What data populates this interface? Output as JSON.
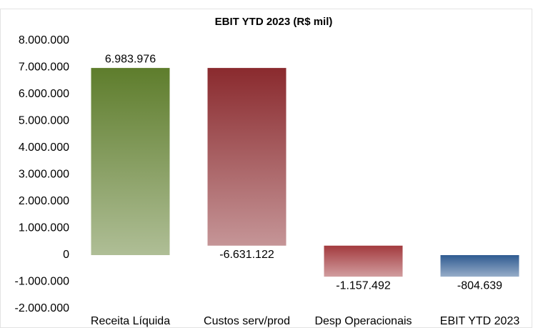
{
  "chart_data": {
    "type": "waterfall",
    "title": "EBIT YTD 2023 (R$ mil)",
    "categories": [
      "Receita Líquida",
      "Custos serv/prod",
      "Desp Operacionais",
      "EBIT YTD 2023"
    ],
    "values": [
      6983976,
      -6631122,
      -1157492,
      -804639
    ],
    "value_labels": [
      "6.983.976",
      "-6.631.122",
      "-1.157.492",
      "-804.639"
    ],
    "measures": [
      "relative",
      "relative",
      "relative",
      "total"
    ],
    "colors": [
      "#5e7d2c",
      "#8a2a2e",
      "#a33a3e",
      "#2f5b91"
    ],
    "ylim": [
      -2000000,
      8000000
    ],
    "yticks": [
      {
        "value": -2000000,
        "label": "-2.000.000"
      },
      {
        "value": -1000000,
        "label": "-1.000.000"
      },
      0,
      {
        "value": 1000000,
        "label": "1.000.000"
      },
      {
        "value": 2000000,
        "label": "2.000.000"
      },
      {
        "value": 3000000,
        "label": "3.000.000"
      },
      {
        "value": 4000000,
        "label": "4.000.000"
      },
      {
        "value": 5000000,
        "label": "5.000.000"
      },
      {
        "value": 6000000,
        "label": "6.000.000"
      },
      {
        "value": 7000000,
        "label": "7.000.000"
      },
      {
        "value": 8000000,
        "label": "8.000.000"
      }
    ],
    "grid": false
  }
}
